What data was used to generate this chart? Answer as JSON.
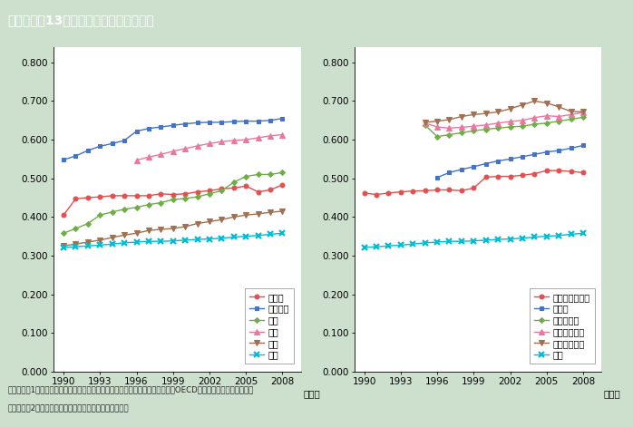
{
  "title": "第１－特－13図　賃金総額男女比の推移",
  "background_color": "#cde0cd",
  "title_bar_color": "#7d6245",
  "title_text_color": "#ffffff",
  "plot_bg_color": "#ffffff",
  "footnote1": "（備考）　1．総務省「労働力調査」，厚生労働省「賃金構造基本統計調査」，OECD資料，米国資料より作成。",
  "footnote2": "　　　　　2．データの出典，計算方法は付注１を参照。",
  "left_panel": {
    "xlabel": "（年）",
    "ylim": [
      0.0,
      0.84
    ],
    "yticks": [
      0.0,
      0.1,
      0.2,
      0.3,
      0.4,
      0.5,
      0.6,
      0.7,
      0.8
    ],
    "xticks": [
      1990,
      1993,
      1996,
      1999,
      2002,
      2005,
      2008
    ],
    "series": {
      "ドイツ": {
        "color": "#e05050",
        "marker": "o",
        "years": [
          1990,
          1991,
          1992,
          1993,
          1994,
          1995,
          1996,
          1997,
          1998,
          1999,
          2000,
          2001,
          2002,
          2003,
          2004,
          2005,
          2006,
          2007,
          2008
        ],
        "values": [
          0.405,
          0.447,
          0.45,
          0.452,
          0.455,
          0.455,
          0.455,
          0.455,
          0.46,
          0.458,
          0.46,
          0.465,
          0.468,
          0.473,
          0.475,
          0.48,
          0.465,
          0.47,
          0.483
        ]
      },
      "フランス": {
        "color": "#4472c4",
        "marker": "s",
        "years": [
          1990,
          1991,
          1992,
          1993,
          1994,
          1995,
          1996,
          1997,
          1998,
          1999,
          2000,
          2001,
          2002,
          2003,
          2004,
          2005,
          2006,
          2007,
          2008
        ],
        "values": [
          0.548,
          0.558,
          0.572,
          0.583,
          0.59,
          0.598,
          0.622,
          0.629,
          0.633,
          0.637,
          0.641,
          0.644,
          0.645,
          0.645,
          0.647,
          0.648,
          0.648,
          0.65,
          0.655
        ]
      },
      "英国": {
        "color": "#70ad47",
        "marker": "D",
        "years": [
          1990,
          1991,
          1992,
          1993,
          1994,
          1995,
          1996,
          1997,
          1998,
          1999,
          2000,
          2001,
          2002,
          2003,
          2004,
          2005,
          2006,
          2007,
          2008
        ],
        "values": [
          0.358,
          0.37,
          0.383,
          0.405,
          0.413,
          0.42,
          0.425,
          0.432,
          0.437,
          0.445,
          0.448,
          0.452,
          0.46,
          0.468,
          0.49,
          0.505,
          0.51,
          0.51,
          0.515
        ]
      },
      "米国": {
        "color": "#e878a0",
        "marker": "^",
        "years": [
          1996,
          1997,
          1998,
          1999,
          2000,
          2001,
          2002,
          2003,
          2004,
          2005,
          2006,
          2007,
          2008
        ],
        "values": [
          0.547,
          0.555,
          0.562,
          0.57,
          0.577,
          0.584,
          0.59,
          0.595,
          0.598,
          0.6,
          0.605,
          0.61,
          0.613
        ]
      },
      "韓国": {
        "color": "#a07050",
        "marker": "v",
        "years": [
          1990,
          1991,
          1992,
          1993,
          1994,
          1995,
          1996,
          1997,
          1998,
          1999,
          2000,
          2001,
          2002,
          2003,
          2004,
          2005,
          2006,
          2007,
          2008
        ],
        "values": [
          0.325,
          0.33,
          0.335,
          0.34,
          0.347,
          0.353,
          0.358,
          0.365,
          0.368,
          0.37,
          0.375,
          0.383,
          0.388,
          0.393,
          0.4,
          0.405,
          0.408,
          0.412,
          0.415
        ]
      },
      "日本": {
        "color": "#00bcd4",
        "marker": "x",
        "years": [
          1990,
          1991,
          1992,
          1993,
          1994,
          1995,
          1996,
          1997,
          1998,
          1999,
          2000,
          2001,
          2002,
          2003,
          2004,
          2005,
          2006,
          2007,
          2008
        ],
        "values": [
          0.321,
          0.323,
          0.325,
          0.327,
          0.33,
          0.333,
          0.335,
          0.337,
          0.337,
          0.338,
          0.34,
          0.342,
          0.343,
          0.345,
          0.348,
          0.35,
          0.352,
          0.355,
          0.358
        ]
      }
    },
    "legend_order": [
      "ドイツ",
      "フランス",
      "英国",
      "米国",
      "韓国",
      "日本"
    ]
  },
  "right_panel": {
    "xlabel": "（年）",
    "ylim": [
      0.0,
      0.84
    ],
    "yticks": [
      0.0,
      0.1,
      0.2,
      0.3,
      0.4,
      0.5,
      0.6,
      0.7,
      0.8
    ],
    "xticks": [
      1990,
      1993,
      1996,
      1999,
      2002,
      2005,
      2008
    ],
    "series": {
      "オーストラリア": {
        "color": "#e05050",
        "marker": "o",
        "years": [
          1990,
          1991,
          1992,
          1993,
          1994,
          1995,
          1996,
          1997,
          1998,
          1999,
          2000,
          2001,
          2002,
          2003,
          2004,
          2005,
          2006,
          2007,
          2008
        ],
        "values": [
          0.462,
          0.458,
          0.462,
          0.465,
          0.467,
          0.468,
          0.47,
          0.47,
          0.468,
          0.475,
          0.503,
          0.505,
          0.505,
          0.508,
          0.512,
          0.52,
          0.52,
          0.518,
          0.515
        ]
      },
      "カナダ": {
        "color": "#4472c4",
        "marker": "s",
        "years": [
          1996,
          1997,
          1998,
          1999,
          2000,
          2001,
          2002,
          2003,
          2004,
          2005,
          2006,
          2007,
          2008
        ],
        "values": [
          0.502,
          0.515,
          0.523,
          0.53,
          0.538,
          0.545,
          0.55,
          0.556,
          0.562,
          0.568,
          0.572,
          0.578,
          0.585
        ]
      },
      "デンマーク": {
        "color": "#70ad47",
        "marker": "D",
        "years": [
          1995,
          1996,
          1997,
          1998,
          1999,
          2000,
          2001,
          2002,
          2003,
          2004,
          2005,
          2006,
          2007,
          2008
        ],
        "values": [
          0.638,
          0.608,
          0.613,
          0.618,
          0.623,
          0.627,
          0.63,
          0.633,
          0.635,
          0.64,
          0.643,
          0.648,
          0.653,
          0.658
        ]
      },
      "フィンランド": {
        "color": "#e878a0",
        "marker": "^",
        "years": [
          1995,
          1996,
          1997,
          1998,
          1999,
          2000,
          2001,
          2002,
          2003,
          2004,
          2005,
          2006,
          2007,
          2008
        ],
        "values": [
          0.643,
          0.633,
          0.63,
          0.632,
          0.635,
          0.638,
          0.643,
          0.647,
          0.65,
          0.657,
          0.662,
          0.66,
          0.665,
          0.67
        ]
      },
      "スウェーデン": {
        "color": "#a07050",
        "marker": "v",
        "years": [
          1995,
          1996,
          1997,
          1998,
          1999,
          2000,
          2001,
          2002,
          2003,
          2004,
          2005,
          2006,
          2007,
          2008
        ],
        "values": [
          0.645,
          0.648,
          0.652,
          0.66,
          0.665,
          0.668,
          0.672,
          0.68,
          0.69,
          0.7,
          0.695,
          0.685,
          0.673,
          0.672
        ]
      },
      "日本": {
        "color": "#00bcd4",
        "marker": "x",
        "years": [
          1990,
          1991,
          1992,
          1993,
          1994,
          1995,
          1996,
          1997,
          1998,
          1999,
          2000,
          2001,
          2002,
          2003,
          2004,
          2005,
          2006,
          2007,
          2008
        ],
        "values": [
          0.321,
          0.323,
          0.325,
          0.327,
          0.33,
          0.333,
          0.335,
          0.337,
          0.337,
          0.338,
          0.34,
          0.342,
          0.343,
          0.345,
          0.348,
          0.35,
          0.352,
          0.355,
          0.358
        ]
      }
    },
    "legend_order": [
      "オーストラリア",
      "カナダ",
      "デンマーク",
      "フィンランド",
      "スウェーデン",
      "日本"
    ]
  }
}
